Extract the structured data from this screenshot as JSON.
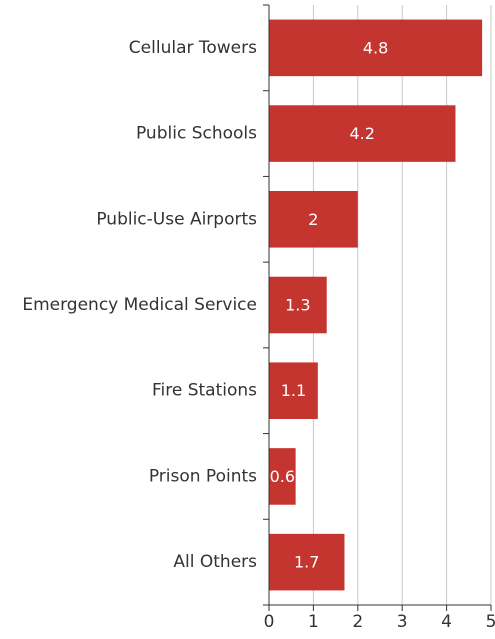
{
  "chart_data": {
    "type": "bar",
    "orientation": "horizontal",
    "title": "",
    "xlabel": "",
    "ylabel": "",
    "categories": [
      "Cellular Towers",
      "Public Schools",
      "Public-Use Airports",
      "Emergency Medical Service",
      "Fire Stations",
      "Prison Points",
      "All Others"
    ],
    "values": [
      4.8,
      4.2,
      2,
      1.3,
      1.1,
      0.6,
      1.7
    ],
    "value_labels": [
      "4.8",
      "4.2",
      "2",
      "1.3",
      "1.1",
      "0.6",
      "1.7"
    ],
    "xlim": [
      0,
      5
    ],
    "xticks": [
      0,
      1,
      2,
      3,
      4,
      5
    ],
    "xtick_labels": [
      "0",
      "1",
      "2",
      "3",
      "4",
      "5"
    ],
    "grid": "vertical",
    "legend": "none",
    "bar_color": "#c43530",
    "label_color": "#ffffff"
  }
}
